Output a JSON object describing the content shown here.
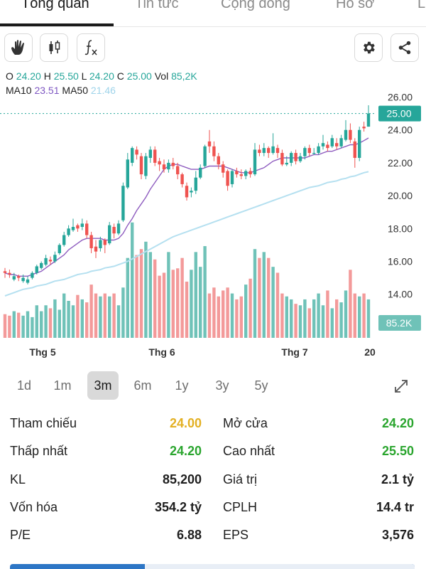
{
  "tabs": [
    {
      "label": "Tổng quan",
      "active": true
    },
    {
      "label": "Tin tức",
      "active": false
    },
    {
      "label": "Cộng đồng",
      "active": false
    },
    {
      "label": "Hồ sơ",
      "active": false
    },
    {
      "label": "L",
      "active": false
    }
  ],
  "toolbar": {
    "left_icons": [
      "hand-icon",
      "candlestick-icon",
      "function-icon"
    ],
    "right_icons": [
      "gear-icon",
      "share-icon"
    ]
  },
  "ohlc": {
    "o_label": "O",
    "o": "24.20",
    "h_label": "H",
    "h": "25.50",
    "l_label": "L",
    "l": "24.20",
    "c_label": "C",
    "c": "25.00",
    "vol_label": "Vol",
    "vol": "85,2K"
  },
  "ma": {
    "ma10_label": "MA10",
    "ma10": "23.51",
    "ma50_label": "MA50",
    "ma50": "21.46"
  },
  "chart_data": {
    "type": "candlestick",
    "price_axis": [
      "26.00",
      "24.00",
      "22.00",
      "20.00",
      "18.00",
      "16.00",
      "14.00"
    ],
    "price_ylim": [
      13.0,
      26.5
    ],
    "current_price_label": "25.00",
    "current_volume_label": "85.2K",
    "x_labels": [
      "Thg 5",
      "Thg 6",
      "Thg 7",
      "20"
    ],
    "candles": [
      [
        15.4,
        15.3,
        15.6,
        15.0
      ],
      [
        15.3,
        15.2,
        15.5,
        15.0
      ],
      [
        14.9,
        15.1,
        15.3,
        14.8
      ],
      [
        15.1,
        15.0,
        15.2,
        14.8
      ],
      [
        14.8,
        15.0,
        15.2,
        14.7
      ],
      [
        14.7,
        14.9,
        15.1,
        14.6
      ],
      [
        15.0,
        15.3,
        15.4,
        14.9
      ],
      [
        15.3,
        15.7,
        15.8,
        15.2
      ],
      [
        15.6,
        15.9,
        16.0,
        15.5
      ],
      [
        15.8,
        16.2,
        16.4,
        15.7
      ],
      [
        16.1,
        16.0,
        16.3,
        15.8
      ],
      [
        16.0,
        16.4,
        16.6,
        15.9
      ],
      [
        16.5,
        17.0,
        17.1,
        16.4
      ],
      [
        17.0,
        17.6,
        17.8,
        16.9
      ],
      [
        17.6,
        18.0,
        18.2,
        17.5
      ],
      [
        17.9,
        18.1,
        18.6,
        17.8
      ],
      [
        18.2,
        18.0,
        18.3,
        17.8
      ],
      [
        18.1,
        18.3,
        18.6,
        17.9
      ],
      [
        18.3,
        17.6,
        18.5,
        17.4
      ],
      [
        17.6,
        16.8,
        17.8,
        16.5
      ],
      [
        16.9,
        16.6,
        17.3,
        16.2
      ],
      [
        16.8,
        17.3,
        17.5,
        16.6
      ],
      [
        17.3,
        17.0,
        17.4,
        16.5
      ],
      [
        17.1,
        18.2,
        18.4,
        17.0
      ],
      [
        18.1,
        17.7,
        18.3,
        17.4
      ],
      [
        17.7,
        18.3,
        18.5,
        17.6
      ],
      [
        18.5,
        20.6,
        20.8,
        18.4
      ],
      [
        20.5,
        22.2,
        22.6,
        20.4
      ],
      [
        22.0,
        22.9,
        23.0,
        21.8
      ],
      [
        22.8,
        22.5,
        23.0,
        22.2
      ],
      [
        22.4,
        21.3,
        22.6,
        21.0
      ],
      [
        21.2,
        22.4,
        22.6,
        21.0
      ],
      [
        22.3,
        22.8,
        23.0,
        22.0
      ],
      [
        22.8,
        22.0,
        23.0,
        21.8
      ],
      [
        22.1,
        21.9,
        22.3,
        21.5
      ],
      [
        21.9,
        21.6,
        22.2,
        21.4
      ],
      [
        21.6,
        22.0,
        22.2,
        21.4
      ],
      [
        22.0,
        21.8,
        22.3,
        21.6
      ],
      [
        21.8,
        21.3,
        22.0,
        21.0
      ],
      [
        21.3,
        20.7,
        21.4,
        20.5
      ],
      [
        20.6,
        19.9,
        20.8,
        19.7
      ],
      [
        20.2,
        20.3,
        20.5,
        19.9
      ],
      [
        20.3,
        21.1,
        21.5,
        20.1
      ],
      [
        21.1,
        21.7,
        21.9,
        21.0
      ],
      [
        21.8,
        23.0,
        23.1,
        21.7
      ],
      [
        23.3,
        23.0,
        24.0,
        22.6
      ],
      [
        23.0,
        22.4,
        23.3,
        22.1
      ],
      [
        22.4,
        21.9,
        22.6,
        21.6
      ],
      [
        21.9,
        21.4,
        22.1,
        21.1
      ],
      [
        21.5,
        20.6,
        21.6,
        20.3
      ],
      [
        20.7,
        21.5,
        21.6,
        20.5
      ],
      [
        21.5,
        21.3,
        21.7,
        21.1
      ],
      [
        21.3,
        21.2,
        21.6,
        21.0
      ],
      [
        21.2,
        21.5,
        21.6,
        21.0
      ],
      [
        21.5,
        21.3,
        21.7,
        21.1
      ],
      [
        21.3,
        22.8,
        23.2,
        21.2
      ],
      [
        22.8,
        22.6,
        23.1,
        22.4
      ],
      [
        22.6,
        22.9,
        23.2,
        22.4
      ],
      [
        22.9,
        22.6,
        23.0,
        22.3
      ],
      [
        22.6,
        23.0,
        23.8,
        22.5
      ],
      [
        22.9,
        22.6,
        23.1,
        22.3
      ],
      [
        22.6,
        21.9,
        22.8,
        21.8
      ],
      [
        21.9,
        22.0,
        22.4,
        21.8
      ],
      [
        22.0,
        22.6,
        22.7,
        21.8
      ],
      [
        22.6,
        22.1,
        22.8,
        21.9
      ],
      [
        22.1,
        22.4,
        22.6,
        22.0
      ],
      [
        22.4,
        22.9,
        23.0,
        22.2
      ],
      [
        22.9,
        22.6,
        23.1,
        22.4
      ],
      [
        22.6,
        22.6,
        22.9,
        22.5
      ],
      [
        22.6,
        23.0,
        23.2,
        22.5
      ],
      [
        23.0,
        23.2,
        23.7,
        22.8
      ],
      [
        23.1,
        22.9,
        23.3,
        22.7
      ],
      [
        23.0,
        23.5,
        23.7,
        22.9
      ],
      [
        23.2,
        23.0,
        23.5,
        22.8
      ],
      [
        23.0,
        23.5,
        23.7,
        22.9
      ],
      [
        23.4,
        24.0,
        24.6,
        23.3
      ],
      [
        24.0,
        23.4,
        24.4,
        23.2
      ],
      [
        23.3,
        22.3,
        23.5,
        21.7
      ],
      [
        22.3,
        24.0,
        24.2,
        22.1
      ],
      [
        24.2,
        24.1,
        24.5,
        23.9
      ],
      [
        24.2,
        25.0,
        25.5,
        24.2
      ]
    ],
    "volumes": [
      0.16,
      0.15,
      0.18,
      0.17,
      0.15,
      0.18,
      0.14,
      0.22,
      0.18,
      0.22,
      0.2,
      0.26,
      0.19,
      0.3,
      0.25,
      0.22,
      0.29,
      0.26,
      0.24,
      0.36,
      0.3,
      0.28,
      0.3,
      0.28,
      0.3,
      0.22,
      0.34,
      0.54,
      0.78,
      0.56,
      0.6,
      0.65,
      0.58,
      0.53,
      0.42,
      0.44,
      0.58,
      0.46,
      0.47,
      0.54,
      0.38,
      0.46,
      0.58,
      0.48,
      0.62,
      0.3,
      0.34,
      0.28,
      0.32,
      0.34,
      0.3,
      0.26,
      0.28,
      0.36,
      0.4,
      0.6,
      0.54,
      0.58,
      0.54,
      0.48,
      0.44,
      0.3,
      0.28,
      0.26,
      0.23,
      0.22,
      0.26,
      0.2,
      0.26,
      0.3,
      0.22,
      0.32,
      0.2,
      0.26,
      0.24,
      0.32,
      0.46,
      0.3,
      0.28,
      0.3,
      0.26
    ],
    "ma10": [
      15.3,
      15.2,
      15.2,
      15.1,
      15.1,
      15.1,
      15.2,
      15.3,
      15.4,
      15.6,
      15.8,
      16.0,
      16.2,
      16.4,
      16.7,
      16.9,
      17.1,
      17.3,
      17.4,
      17.4,
      17.4,
      17.4,
      17.3,
      17.3,
      17.3,
      17.4,
      17.7,
      18.2,
      18.6,
      19.1,
      19.5,
      19.9,
      20.4,
      20.8,
      21.2,
      21.6,
      21.8,
      21.9,
      21.9,
      21.8,
      21.7,
      21.6,
      21.6,
      21.6,
      21.7,
      21.8,
      21.8,
      21.8,
      21.8,
      21.7,
      21.6,
      21.5,
      21.4,
      21.4,
      21.4,
      21.5,
      21.6,
      21.7,
      21.9,
      22.1,
      22.2,
      22.3,
      22.3,
      22.3,
      22.3,
      22.3,
      22.3,
      22.4,
      22.5,
      22.5,
      22.6,
      22.7,
      22.7,
      22.8,
      22.9,
      23.0,
      23.1,
      23.1,
      23.2,
      23.35,
      23.51
    ],
    "ma50": [
      13.9,
      14.0,
      14.1,
      14.2,
      14.3,
      14.35,
      14.4,
      14.5,
      14.55,
      14.6,
      14.7,
      14.8,
      14.85,
      14.9,
      15.0,
      15.1,
      15.2,
      15.25,
      15.3,
      15.4,
      15.45,
      15.5,
      15.6,
      15.65,
      15.7,
      15.8,
      15.9,
      16.0,
      16.15,
      16.3,
      16.45,
      16.6,
      16.75,
      16.9,
      17.05,
      17.2,
      17.35,
      17.5,
      17.6,
      17.7,
      17.8,
      17.9,
      18.0,
      18.1,
      18.2,
      18.3,
      18.4,
      18.5,
      18.6,
      18.7,
      18.8,
      18.9,
      19.0,
      19.1,
      19.2,
      19.3,
      19.4,
      19.5,
      19.6,
      19.7,
      19.8,
      19.9,
      20.0,
      20.1,
      20.2,
      20.3,
      20.4,
      20.5,
      20.55,
      20.6,
      20.7,
      20.8,
      20.85,
      20.9,
      21.0,
      21.05,
      21.15,
      21.2,
      21.3,
      21.4,
      21.46
    ],
    "colors": {
      "up": "#26a69a",
      "down": "#ef5350",
      "up_vol": "#6fc2b8",
      "down_vol": "#f39a9a",
      "ma10": "#8e5cbf",
      "ma50": "#b5e0f0"
    }
  },
  "periods": [
    {
      "label": "1d",
      "active": false
    },
    {
      "label": "1m",
      "active": false
    },
    {
      "label": "3m",
      "active": true
    },
    {
      "label": "6m",
      "active": false
    },
    {
      "label": "1y",
      "active": false
    },
    {
      "label": "3y",
      "active": false
    },
    {
      "label": "5y",
      "active": false
    }
  ],
  "stats": {
    "ref_label": "Tham chiếu",
    "ref_value": "24.00",
    "open_label": "Mở cửa",
    "open_value": "24.20",
    "low_label": "Thấp nhất",
    "low_value": "24.20",
    "high_label": "Cao nhất",
    "high_value": "25.50",
    "vol_label": "KL",
    "vol_value": "85,200",
    "value_label": "Giá trị",
    "value_value": "2.1 tỷ",
    "cap_label": "Vốn hóa",
    "cap_value": "354.2 tỷ",
    "shares_label": "CPLH",
    "shares_value": "14.4 tr",
    "pe_label": "P/E",
    "pe_value": "6.88",
    "eps_label": "EPS",
    "eps_value": "3,576"
  }
}
